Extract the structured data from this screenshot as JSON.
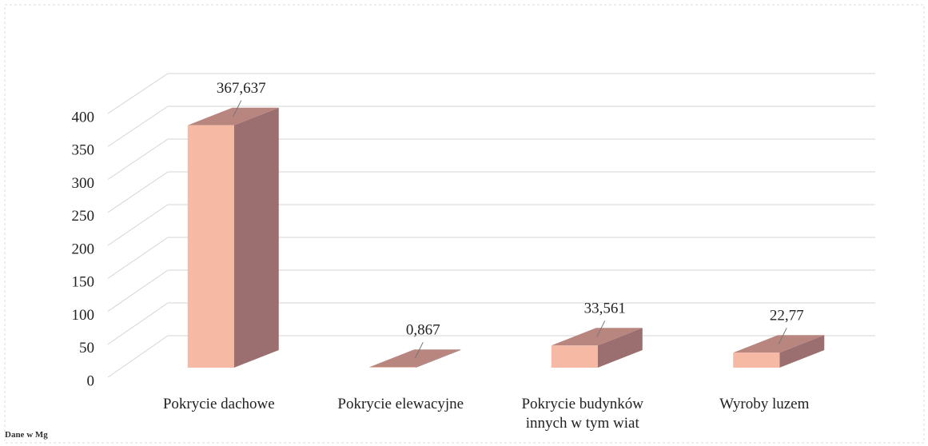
{
  "chart_data": {
    "type": "bar3d",
    "categories": [
      "Pokrycie dachowe",
      "Pokrycie elewacyjne",
      "Pokrycie budynków innych w tym wiat",
      "Wyroby luzem"
    ],
    "values": [
      367.637,
      0.867,
      33.561,
      22.77
    ],
    "value_labels": [
      "367,637",
      "0,867",
      "33,561",
      "22,77"
    ],
    "colors": {
      "front": "#f6b9a4",
      "side": "#9b6f6f",
      "top": "#b8857f"
    },
    "ylim": [
      0,
      400
    ],
    "yticks": [
      0,
      50,
      100,
      150,
      200,
      250,
      300,
      350,
      400
    ],
    "grid": true,
    "footnote": "Dane w Mg"
  }
}
